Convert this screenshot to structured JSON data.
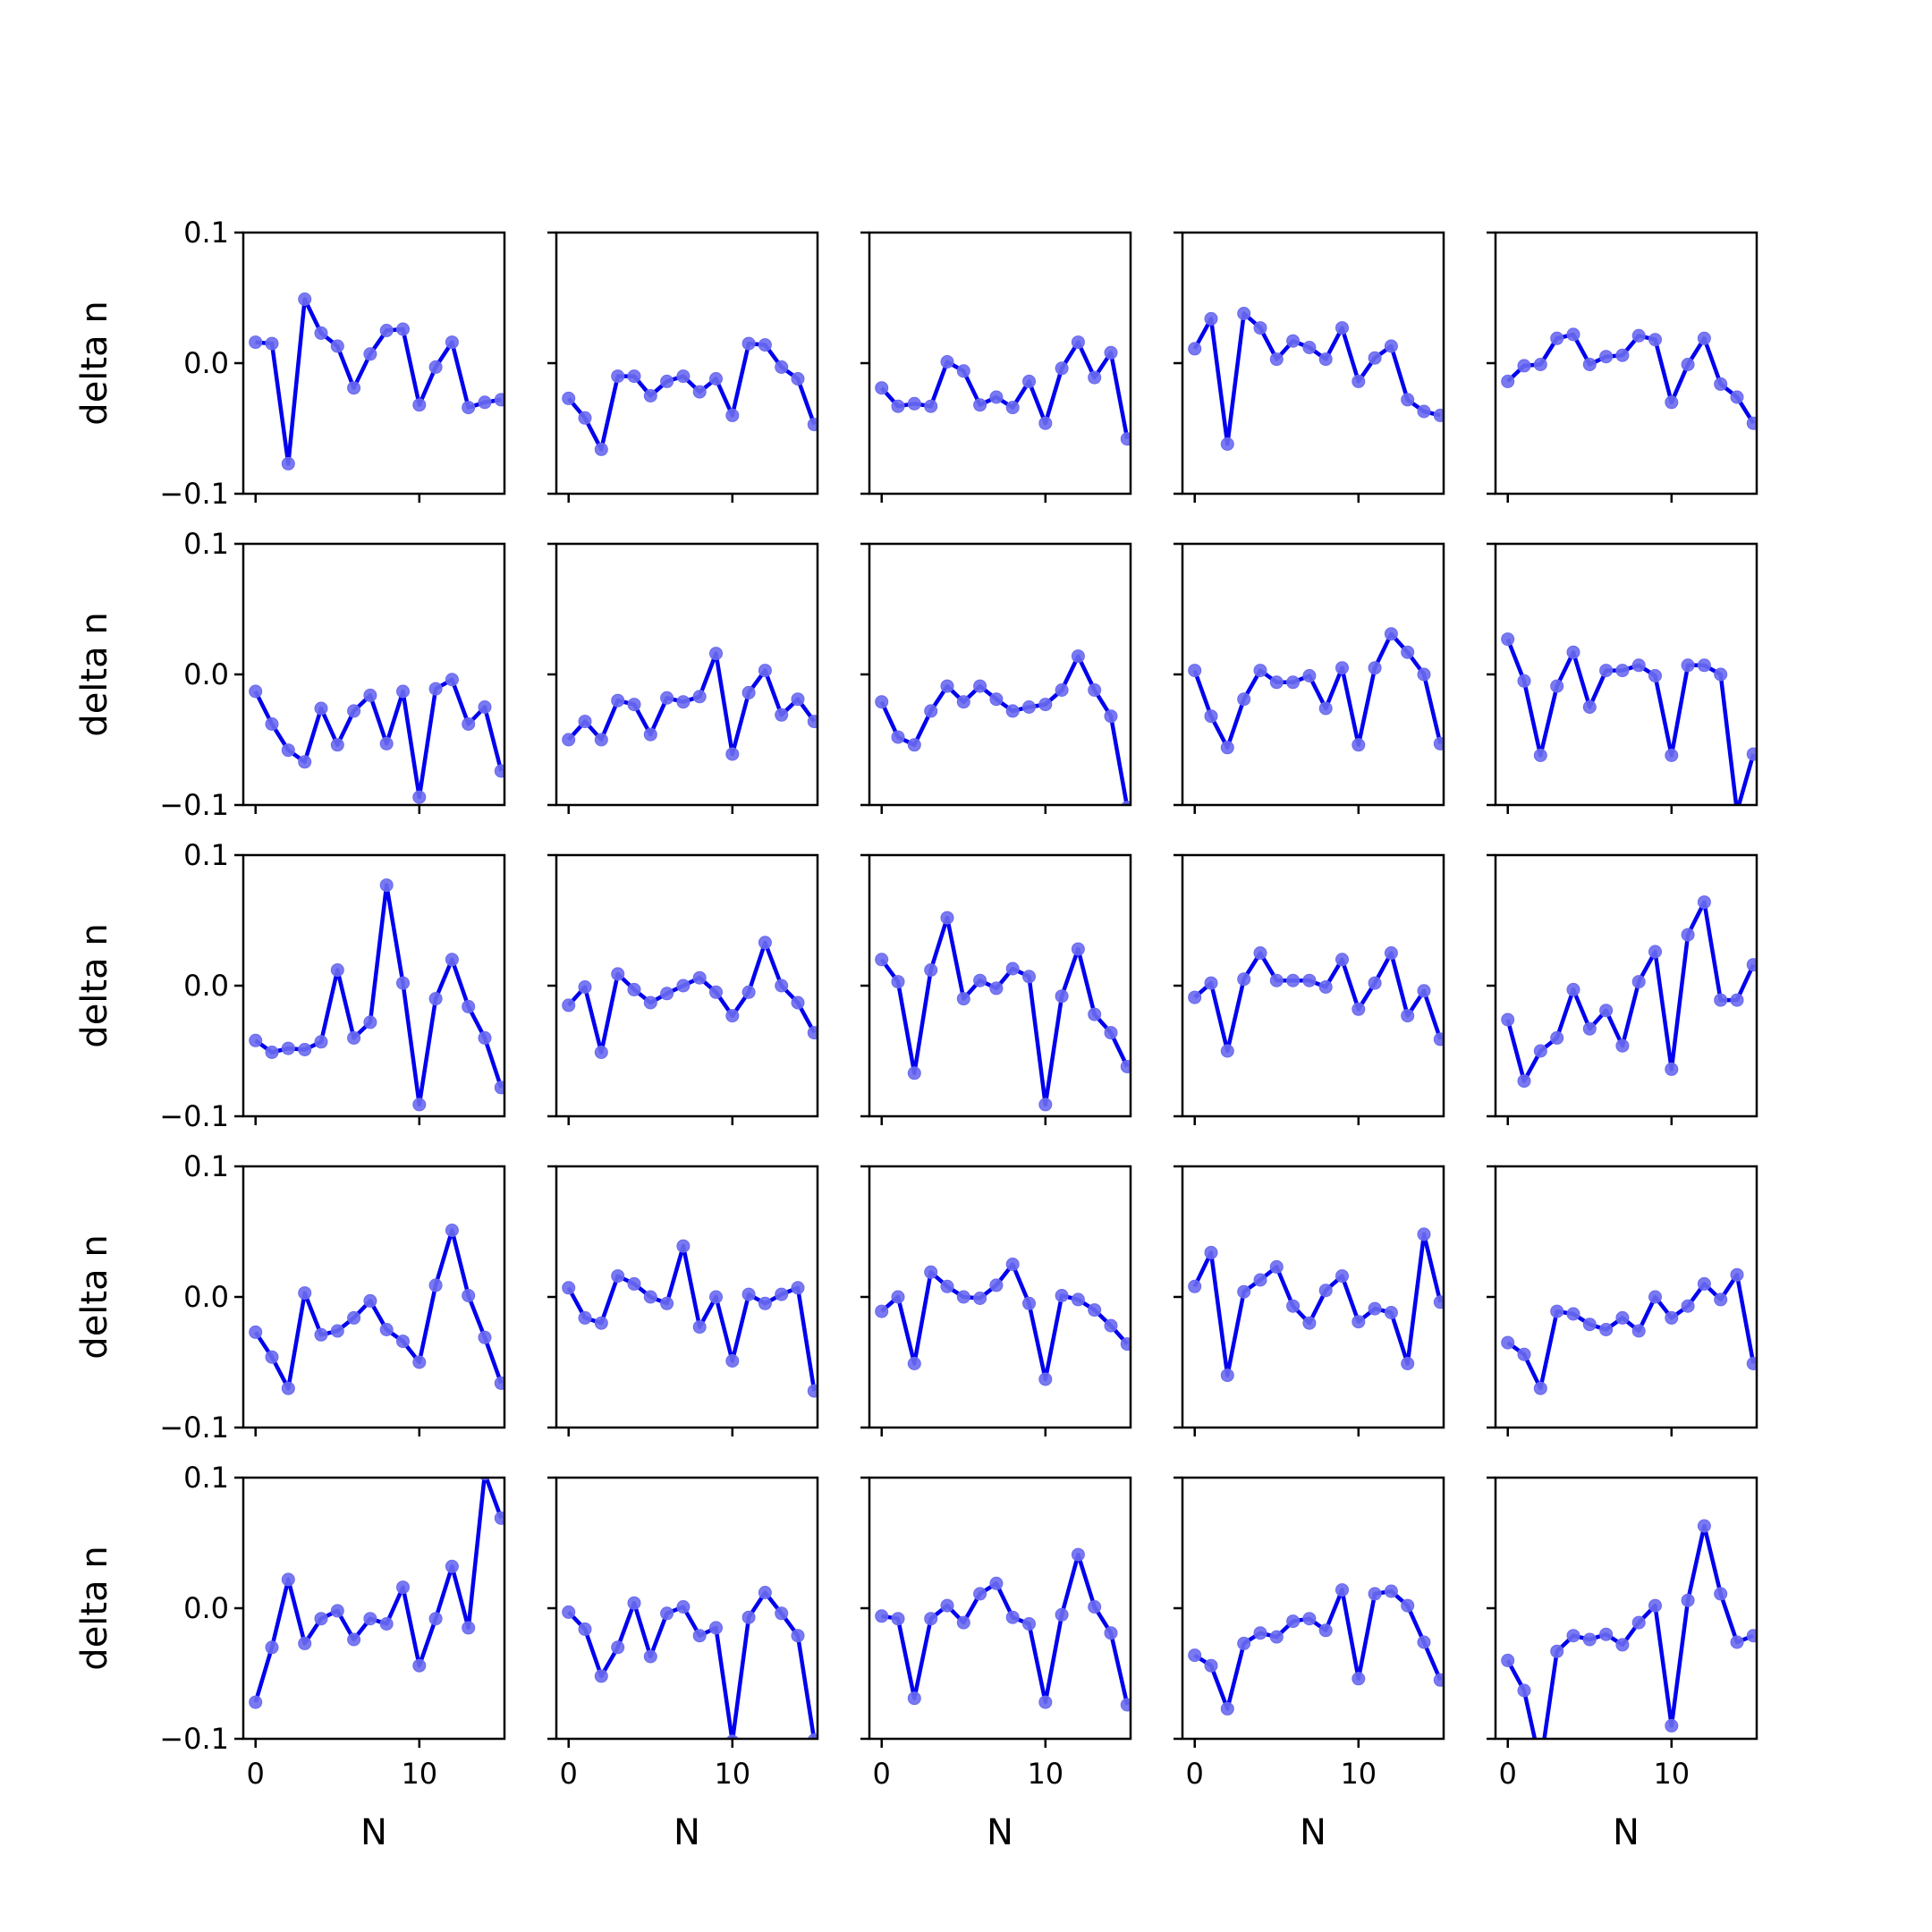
{
  "chart_data": {
    "type": "line",
    "layout": {
      "rows": 5,
      "cols": 5
    },
    "xlabel": "N",
    "ylabel": "delta n",
    "x": [
      0,
      1,
      2,
      3,
      4,
      5,
      6,
      7,
      8,
      9,
      10,
      11,
      12,
      13,
      14,
      15
    ],
    "xlim": [
      -0.75,
      15.2
    ],
    "ylim": [
      -0.1,
      0.1
    ],
    "x_ticks": [
      0,
      10
    ],
    "x_tick_labels": [
      "0",
      "10"
    ],
    "y_ticks": [
      0.1,
      0.0,
      -0.1
    ],
    "y_tick_labels": [
      "0.1",
      "0.0",
      "−0.1"
    ],
    "line_color": "#0000ee",
    "marker_color": "#6a6af0",
    "panels": [
      {
        "values": [
          0.016,
          0.015,
          -0.077,
          0.049,
          0.023,
          0.013,
          -0.019,
          0.007,
          0.025,
          0.026,
          -0.032,
          -0.003,
          0.016,
          -0.034,
          -0.03,
          -0.028
        ]
      },
      {
        "values": [
          -0.027,
          -0.042,
          -0.066,
          -0.01,
          -0.01,
          -0.025,
          -0.014,
          -0.01,
          -0.022,
          -0.012,
          -0.04,
          0.015,
          0.014,
          -0.003,
          -0.012,
          -0.047
        ]
      },
      {
        "values": [
          -0.019,
          -0.033,
          -0.031,
          -0.033,
          0.001,
          -0.006,
          -0.032,
          -0.026,
          -0.034,
          -0.014,
          -0.046,
          -0.004,
          0.016,
          -0.011,
          0.008,
          -0.058
        ]
      },
      {
        "values": [
          0.011,
          0.034,
          -0.062,
          0.038,
          0.027,
          0.003,
          0.017,
          0.012,
          0.003,
          0.027,
          -0.014,
          0.004,
          0.013,
          -0.028,
          -0.037,
          -0.04
        ]
      },
      {
        "values": [
          -0.014,
          -0.002,
          -0.001,
          0.019,
          0.022,
          -0.001,
          0.005,
          0.006,
          0.021,
          0.018,
          -0.03,
          -0.001,
          0.019,
          -0.016,
          -0.026,
          -0.046
        ]
      },
      {
        "values": [
          -0.013,
          -0.038,
          -0.058,
          -0.067,
          -0.026,
          -0.054,
          -0.028,
          -0.016,
          -0.053,
          -0.013,
          -0.094,
          -0.011,
          -0.004,
          -0.038,
          -0.025,
          -0.074
        ]
      },
      {
        "values": [
          -0.05,
          -0.036,
          -0.05,
          -0.02,
          -0.023,
          -0.046,
          -0.018,
          -0.021,
          -0.017,
          0.016,
          -0.061,
          -0.014,
          0.003,
          -0.031,
          -0.019,
          -0.036
        ]
      },
      {
        "values": [
          -0.021,
          -0.048,
          -0.054,
          -0.028,
          -0.009,
          -0.021,
          -0.009,
          -0.019,
          -0.028,
          -0.025,
          -0.023,
          -0.012,
          0.014,
          -0.012,
          -0.032,
          -0.102
        ]
      },
      {
        "values": [
          0.003,
          -0.032,
          -0.056,
          -0.019,
          0.003,
          -0.006,
          -0.006,
          -0.001,
          -0.026,
          0.005,
          -0.054,
          0.005,
          0.031,
          0.017,
          0.0,
          -0.053
        ]
      },
      {
        "values": [
          0.027,
          -0.005,
          -0.062,
          -0.009,
          0.017,
          -0.025,
          0.003,
          0.003,
          0.007,
          -0.001,
          -0.062,
          0.007,
          0.007,
          0.0,
          -0.105,
          -0.061
        ]
      },
      {
        "values": [
          -0.042,
          -0.051,
          -0.048,
          -0.049,
          -0.043,
          0.012,
          -0.04,
          -0.028,
          0.077,
          0.002,
          -0.091,
          -0.01,
          0.02,
          -0.016,
          -0.04,
          -0.078
        ]
      },
      {
        "values": [
          -0.015,
          -0.001,
          -0.051,
          0.009,
          -0.003,
          -0.013,
          -0.006,
          0.0,
          0.006,
          -0.005,
          -0.023,
          -0.005,
          0.033,
          0.0,
          -0.013,
          -0.036
        ]
      },
      {
        "values": [
          0.02,
          0.003,
          -0.067,
          0.012,
          0.052,
          -0.01,
          0.004,
          -0.002,
          0.013,
          0.007,
          -0.091,
          -0.008,
          0.028,
          -0.022,
          -0.036,
          -0.062
        ]
      },
      {
        "values": [
          -0.009,
          0.002,
          -0.05,
          0.005,
          0.025,
          0.004,
          0.004,
          0.004,
          -0.001,
          0.02,
          -0.018,
          0.002,
          0.025,
          -0.023,
          -0.004,
          -0.041
        ]
      },
      {
        "values": [
          -0.026,
          -0.073,
          -0.05,
          -0.04,
          -0.003,
          -0.033,
          -0.019,
          -0.046,
          0.003,
          0.026,
          -0.064,
          0.039,
          0.064,
          -0.011,
          -0.011,
          0.016
        ]
      },
      {
        "values": [
          -0.027,
          -0.046,
          -0.07,
          0.003,
          -0.029,
          -0.026,
          -0.016,
          -0.003,
          -0.025,
          -0.034,
          -0.05,
          0.009,
          0.051,
          0.001,
          -0.031,
          -0.066
        ]
      },
      {
        "values": [
          0.007,
          -0.016,
          -0.02,
          0.016,
          0.01,
          0.0,
          -0.005,
          0.039,
          -0.023,
          0.0,
          -0.049,
          0.002,
          -0.005,
          0.002,
          0.007,
          -0.072
        ]
      },
      {
        "values": [
          -0.011,
          0.0,
          -0.051,
          0.019,
          0.008,
          0.0,
          -0.001,
          0.009,
          0.025,
          -0.005,
          -0.063,
          0.001,
          -0.002,
          -0.01,
          -0.022,
          -0.036
        ]
      },
      {
        "values": [
          0.008,
          0.034,
          -0.06,
          0.004,
          0.013,
          0.023,
          -0.007,
          -0.02,
          0.005,
          0.016,
          -0.019,
          -0.009,
          -0.012,
          -0.051,
          0.048,
          -0.004
        ]
      },
      {
        "values": [
          -0.035,
          -0.044,
          -0.07,
          -0.011,
          -0.013,
          -0.021,
          -0.025,
          -0.016,
          -0.026,
          0.0,
          -0.016,
          -0.007,
          0.01,
          -0.002,
          0.017,
          -0.051
        ]
      },
      {
        "values": [
          -0.072,
          -0.03,
          0.022,
          -0.027,
          -0.008,
          -0.002,
          -0.024,
          -0.008,
          -0.012,
          0.016,
          -0.044,
          -0.008,
          0.032,
          -0.015,
          0.103,
          0.069
        ]
      },
      {
        "values": [
          -0.003,
          -0.016,
          -0.052,
          -0.03,
          0.004,
          -0.037,
          -0.004,
          0.001,
          -0.021,
          -0.015,
          -0.102,
          -0.007,
          0.012,
          -0.004,
          -0.021,
          -0.101
        ]
      },
      {
        "values": [
          -0.006,
          -0.008,
          -0.069,
          -0.008,
          0.002,
          -0.011,
          0.011,
          0.019,
          -0.007,
          -0.012,
          -0.072,
          -0.005,
          0.041,
          0.001,
          -0.019,
          -0.074
        ]
      },
      {
        "values": [
          -0.036,
          -0.044,
          -0.077,
          -0.027,
          -0.019,
          -0.022,
          -0.01,
          -0.008,
          -0.017,
          0.014,
          -0.054,
          0.011,
          0.013,
          0.002,
          -0.026,
          -0.055
        ]
      },
      {
        "values": [
          -0.04,
          -0.063,
          -0.12,
          -0.033,
          -0.021,
          -0.024,
          -0.02,
          -0.028,
          -0.011,
          0.002,
          -0.09,
          0.006,
          0.063,
          0.011,
          -0.026,
          -0.021
        ]
      }
    ]
  }
}
